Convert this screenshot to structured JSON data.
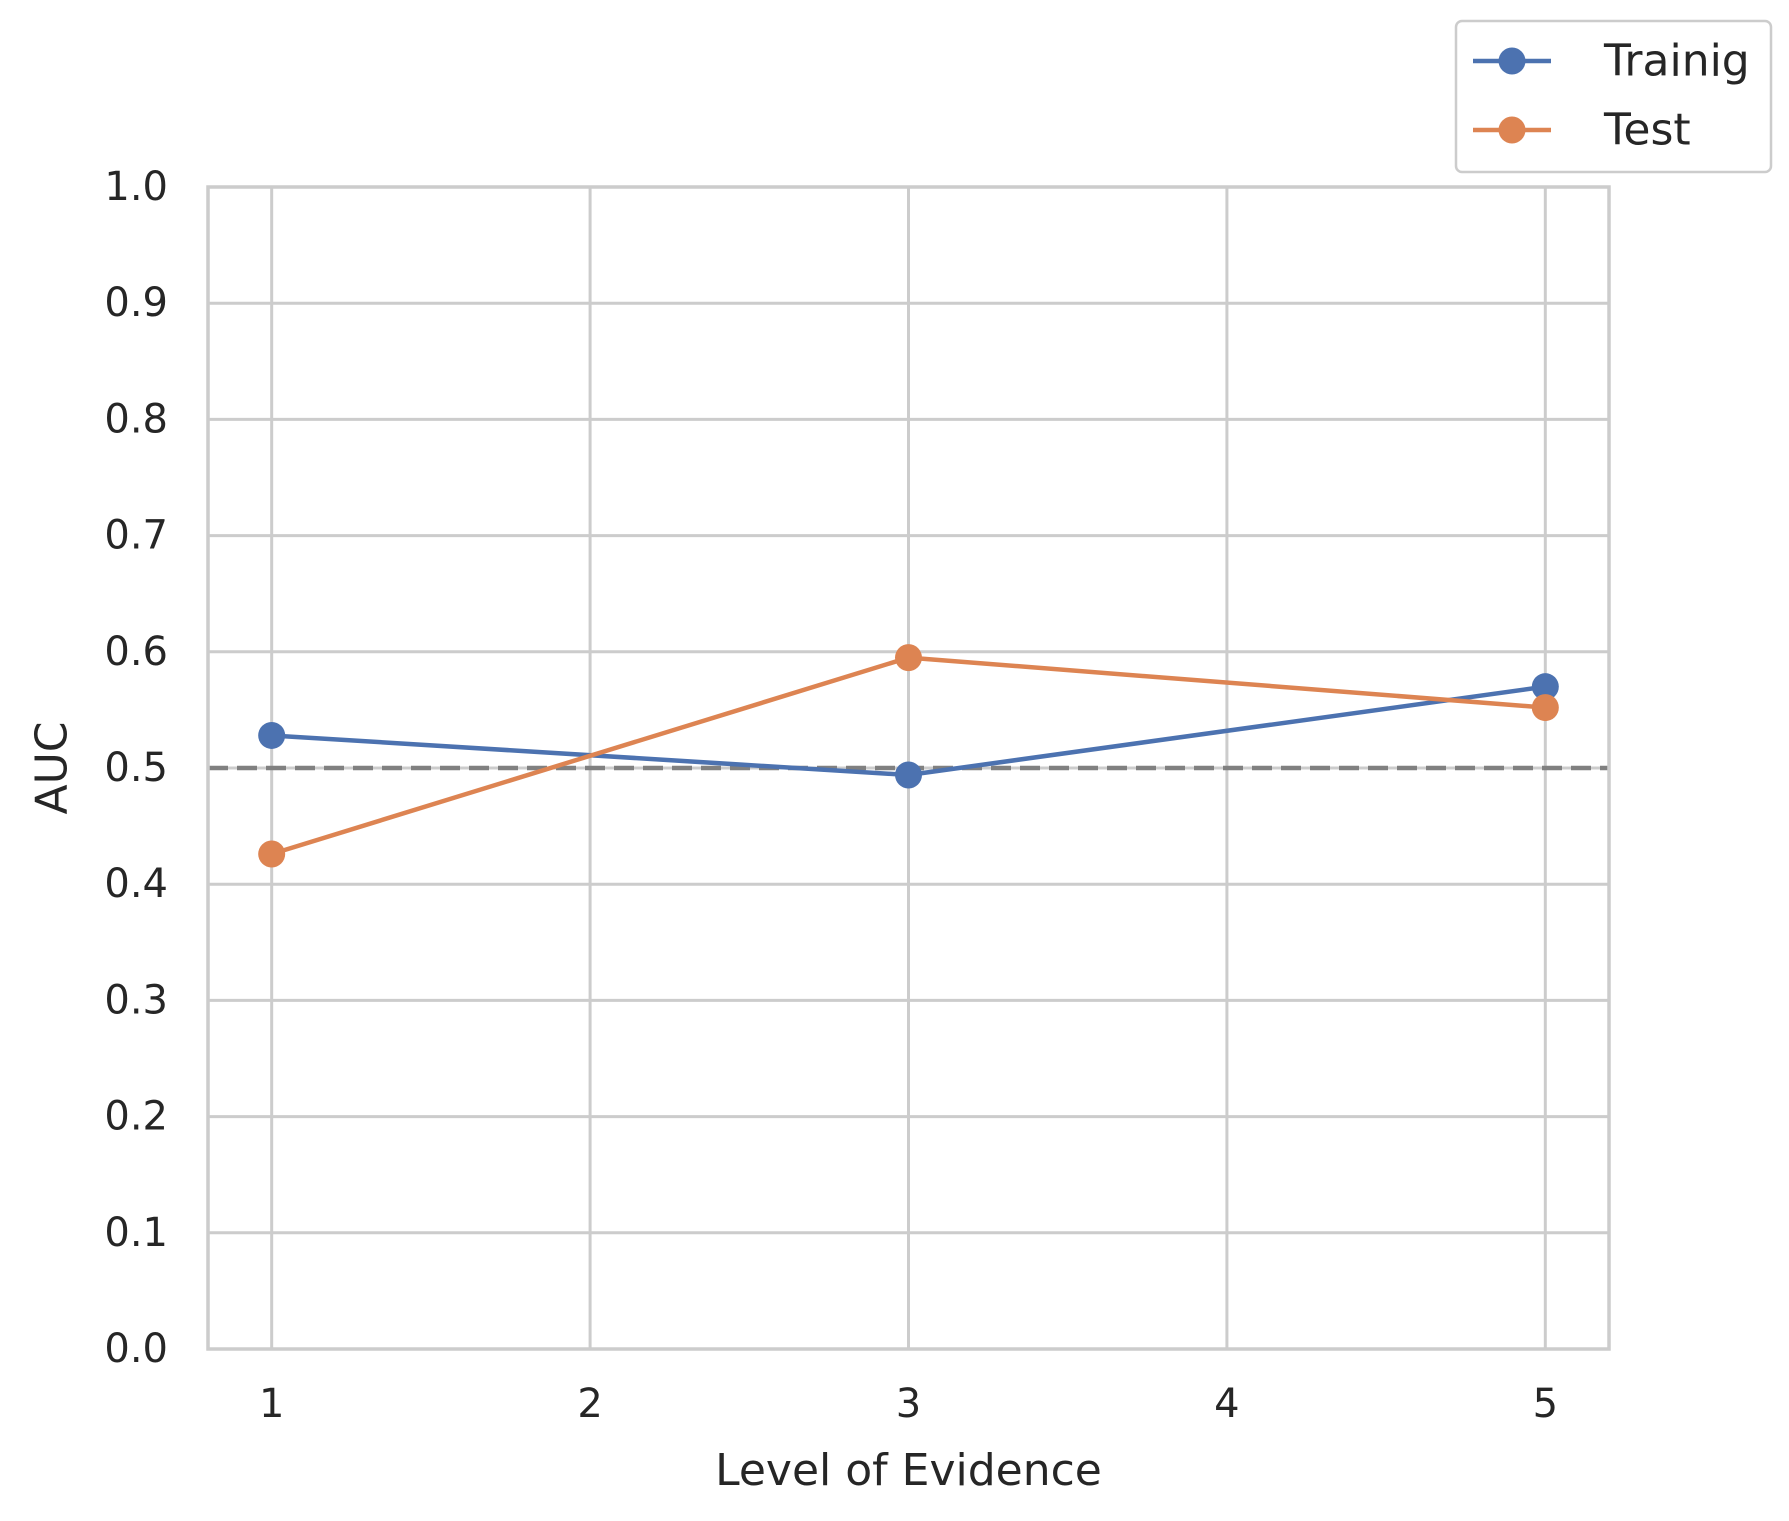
{
  "chart_data": {
    "type": "line",
    "xlabel": "Level of Evidence",
    "ylabel": "AUC",
    "x": [
      1,
      2,
      3,
      4,
      5
    ],
    "x_tick_labels": [
      "1",
      "2",
      "3",
      "4",
      "5"
    ],
    "xlim": [
      0.8,
      5.2
    ],
    "ylim": [
      0.0,
      1.0
    ],
    "y_tick_labels": [
      "0.0",
      "0.1",
      "0.2",
      "0.3",
      "0.4",
      "0.5",
      "0.6",
      "0.7",
      "0.8",
      "0.9",
      "1.0"
    ],
    "grid": true,
    "legend_position": "top-right",
    "reference_line": {
      "y": 0.5,
      "style": "dashed",
      "color": "#808080"
    },
    "series": [
      {
        "name": "Trainig",
        "color": "#4c72b0",
        "x": [
          1,
          3,
          5
        ],
        "values": [
          0.528,
          0.494,
          0.57
        ]
      },
      {
        "name": "Test",
        "color": "#dd8452",
        "x": [
          1,
          3,
          5
        ],
        "values": [
          0.426,
          0.595,
          0.552
        ]
      }
    ]
  }
}
